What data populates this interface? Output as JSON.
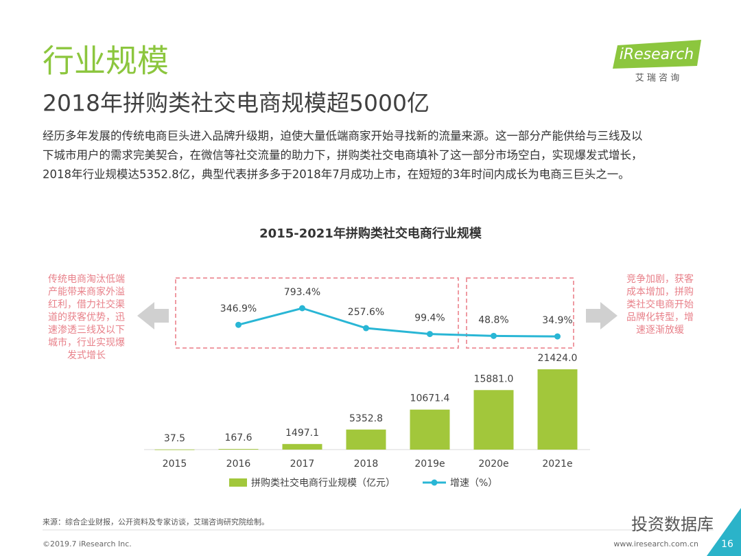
{
  "header": {
    "title": "行业规模",
    "subtitle": "2018年拼购类社交电商规模超5000亿",
    "logo": "iResearch",
    "logo_sub": "艾 瑞 咨 询"
  },
  "paragraph": [
    "经历多年发展的传统电商巨头进入品牌升级期，迫使大量低端商家开始寻找新的流量来源。这一部分产能供给与三线及以",
    "下城市用户的需求完美契合，在微信等社交流量的助力下，拼购类社交电商填补了这一部分市场空白，实现爆发式增长，",
    "2018年行业规模达5352.8亿，典型代表拼多多于2018年7月成功上市，在短短的3年时间内成长为电商三巨头之一。"
  ],
  "chart_data": {
    "type": "bar_line",
    "title": "2015-2021年拼购类社交电商行业规模",
    "categories": [
      "2015",
      "2016",
      "2017",
      "2018",
      "2019e",
      "2020e",
      "2021e"
    ],
    "series": [
      {
        "name": "拼购类社交电商行业规模（亿元）",
        "color": "#a2c73b",
        "type": "bar",
        "values": [
          37.5,
          167.6,
          1497.1,
          5352.8,
          10671.4,
          15881.0,
          21424.0
        ],
        "value_labels": [
          "37.5",
          "167.6",
          "1497.1",
          "5352.8",
          "10671.4",
          "15881.0",
          "21424.0"
        ]
      },
      {
        "name": "增速（%）",
        "color": "#29b6d5",
        "type": "line",
        "values": [
          null,
          346.9,
          793.4,
          257.6,
          99.4,
          48.8,
          34.9
        ],
        "value_labels": [
          null,
          "346.9%",
          "793.4%",
          "257.6%",
          "99.4%",
          "48.8%",
          "34.9%"
        ]
      }
    ],
    "annotations": {
      "left": [
        "传统电商淘汰低端",
        "产能带来商家外溢",
        "红利，借力社交渠",
        "道的获客优势，迅",
        "速渗透三线及以下",
        "城市，行业实现爆",
        "发式增长"
      ],
      "right": [
        "竞争加剧，获客",
        "成本增加，拼购",
        "类社交电商开始",
        "品牌化转型，增",
        "速逐渐放缓"
      ]
    }
  },
  "footer": {
    "source": "来源：综合企业财报，公开资料及专家访谈，艾瑞咨询研究院绘制。",
    "copyright": "©2019.7 iResearch Inc.",
    "website": "www.iresearch.com.cn",
    "page": "16",
    "watermark": "投资数据库"
  }
}
